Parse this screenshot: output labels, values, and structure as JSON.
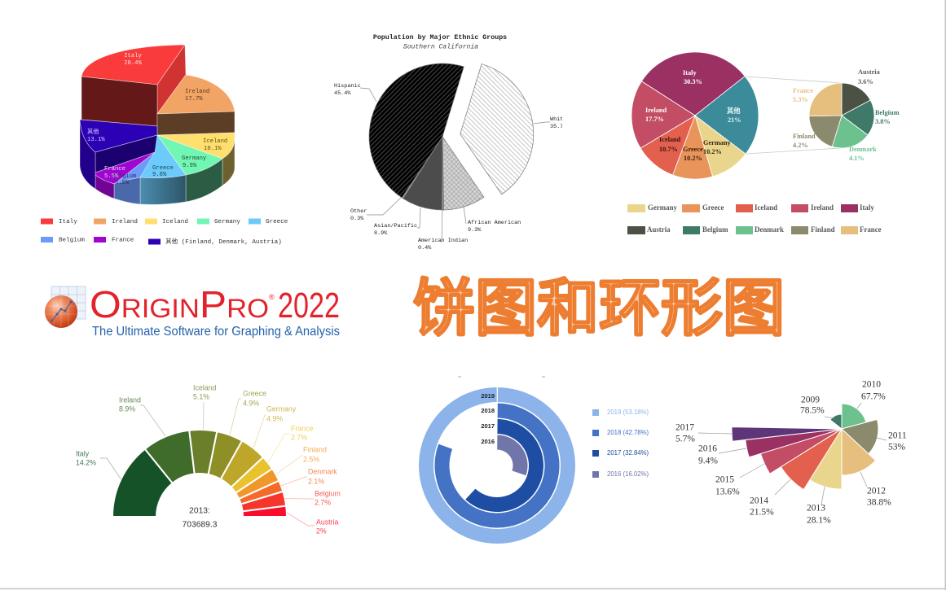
{
  "page": {
    "title": "饼图和环形图",
    "title_fill": "#f9caa7",
    "title_stroke": "#ed7d31",
    "logo": {
      "brand": "OriginPro",
      "registered": "®",
      "version": "2022",
      "tagline": "The Ultimate Software for Graphing & Analysis",
      "brand_color": "#e3232c",
      "tagline_color": "#2361ab"
    }
  },
  "chart_data": [
    {
      "id": "pie-3d-exploded",
      "type": "pie",
      "subtype": "3d-exploded",
      "slices": [
        {
          "name": "Italy",
          "pct": "28.4%",
          "value": 28.4,
          "color": "#f93b3b"
        },
        {
          "name": "Ireland",
          "pct": "17.7%",
          "value": 17.7,
          "color": "#f2a464"
        },
        {
          "name": "Iceland",
          "pct": "10.1%",
          "value": 10.1,
          "color": "#ffe06e"
        },
        {
          "name": "Germany",
          "pct": "9.9%",
          "value": 9.9,
          "color": "#72f6b4"
        },
        {
          "name": "Greece",
          "pct": "9.8%",
          "value": 9.8,
          "color": "#6ccbfa"
        },
        {
          "name": "Belgium",
          "pct": "5.5%",
          "value": 5.5,
          "color": "#6c9afa"
        },
        {
          "name": "France",
          "pct": "5.5%",
          "value": 5.5,
          "color": "#9f06cf"
        },
        {
          "name": "其他",
          "pct": "13.1%",
          "value": 13.1,
          "color": "#2c00b4"
        }
      ],
      "legend": [
        "Italy",
        "Ireland",
        "Iceland",
        "Germany",
        "Greece",
        "Belgium",
        "France",
        "其他 (Finland, Denmark, Austria)"
      ],
      "legend_position": "bottom"
    },
    {
      "id": "pie-ethnic-groups",
      "type": "pie",
      "title": "Population by Major Ethnic Groups",
      "subtitle": "Southern California",
      "slices": [
        {
          "name": "White",
          "pct": "35.7%",
          "value": 35.7,
          "color": "#ffffff",
          "pattern": "diag-light",
          "exploded": true
        },
        {
          "name": "African American",
          "pct": "9.3%",
          "value": 9.3,
          "color": "#d2d2d2",
          "pattern": "crosshatch"
        },
        {
          "name": "American Indian",
          "pct": "0.4%",
          "value": 0.4,
          "color": "#8e8e8e"
        },
        {
          "name": "Asian/Pacific",
          "pct": "8.9%",
          "value": 8.9,
          "color": "#4c4c4c"
        },
        {
          "name": "Other",
          "pct": "0.3%",
          "value": 0.3,
          "color": "#a4a4a4"
        },
        {
          "name": "Hispanic",
          "pct": "45.4%",
          "value": 45.4,
          "color": "#000000",
          "pattern": "diag-dark"
        }
      ]
    },
    {
      "id": "pie-of-pie",
      "type": "pie",
      "subtype": "pie-of-pie",
      "slices": [
        {
          "name": "Italy",
          "pct": "30.3%",
          "value": 30.3,
          "color": "#9b3163",
          "label_color": "#ffffff"
        },
        {
          "name": "其他",
          "pct": "21%",
          "value": 21,
          "color": "#3b8b9b",
          "label_color": "#e6f3f5"
        },
        {
          "name": "Germany",
          "pct": "10.2%",
          "value": 10.2,
          "color": "#e9d68c",
          "label_color": "#3a2410"
        },
        {
          "name": "Greece",
          "pct": "10.2%",
          "value": 10.2,
          "color": "#e8945a",
          "label_color": "#3a1e10"
        },
        {
          "name": "Iceland",
          "pct": "10.7%",
          "value": 10.7,
          "color": "#e2604d",
          "label_color": "#3a1410"
        },
        {
          "name": "Ireland",
          "pct": "17.7%",
          "value": 17.7,
          "color": "#c24d65",
          "label_color": "#ffffff"
        }
      ],
      "secondary": [
        {
          "name": "Austria",
          "pct": "3.6%",
          "value": 3.6,
          "color": "#4b5145",
          "label_color": "#5b5f55"
        },
        {
          "name": "Belgium",
          "pct": "3.8%",
          "value": 3.8,
          "color": "#3e7a67",
          "label_color": "#3e7a67"
        },
        {
          "name": "Denmark",
          "pct": "4.1%",
          "value": 4.1,
          "color": "#6dc18f",
          "label_color": "#6dc18f"
        },
        {
          "name": "Finland",
          "pct": "4.2%",
          "value": 4.2,
          "color": "#8c8a6c",
          "label_color": "#8c8a6c"
        },
        {
          "name": "France",
          "pct": "5.3%",
          "value": 5.3,
          "color": "#e6bf7f",
          "label_color": "#e6bf7f"
        }
      ],
      "legend": [
        "Germany",
        "Greece",
        "Iceland",
        "Ireland",
        "Italy",
        "Austria",
        "Belgium",
        "Denmark",
        "Finland",
        "France"
      ],
      "legend_position": "bottom"
    },
    {
      "id": "half-donut-2013",
      "type": "pie",
      "subtype": "half-donut",
      "center_label": "2013:",
      "center_value": "703689.3",
      "slices": [
        {
          "name": "Italy",
          "pct": "14.2%",
          "value": 14.2,
          "color": "#165228"
        },
        {
          "name": "Ireland",
          "pct": "8.9%",
          "value": 8.9,
          "color": "#3f6b2b"
        },
        {
          "name": "Iceland",
          "pct": "5.1%",
          "value": 5.1,
          "color": "#6b7f2b"
        },
        {
          "name": "Greece",
          "pct": "4.9%",
          "value": 4.9,
          "color": "#8f8f28"
        },
        {
          "name": "Germany",
          "pct": "4.9%",
          "value": 4.9,
          "color": "#bea62b"
        },
        {
          "name": "France",
          "pct": "2.7%",
          "value": 2.7,
          "color": "#e8c32e"
        },
        {
          "name": "Finland",
          "pct": "2.5%",
          "value": 2.5,
          "color": "#f0962b"
        },
        {
          "name": "Denmark",
          "pct": "2.1%",
          "value": 2.1,
          "color": "#f46a2b"
        },
        {
          "name": "Belgium",
          "pct": "2.7%",
          "value": 2.7,
          "color": "#f6352b"
        },
        {
          "name": "Austria",
          "pct": "2%",
          "value": 2,
          "color": "#fa0d2c"
        }
      ]
    },
    {
      "id": "radial-bar",
      "type": "bar",
      "subtype": "radial",
      "categories": [
        "2019",
        "2018",
        "2017",
        "2016"
      ],
      "values": [
        53.18,
        42.78,
        32.84,
        16.02
      ],
      "colors": [
        "#8cb4ea",
        "#4472c4",
        "#1e4ea4",
        "#7076a9"
      ],
      "legend": [
        "2019 (53.18%)",
        "2018 (42.78%)",
        "2017 (32.84%)",
        "2016 (16.02%)"
      ],
      "legend_position": "right"
    },
    {
      "id": "rose-chart",
      "type": "pie",
      "subtype": "rose",
      "slices": [
        {
          "name": "2009",
          "pct": "78.5%",
          "value": 78.5,
          "color": "#3e7a67"
        },
        {
          "name": "2010",
          "pct": "67.7%",
          "value": 67.7,
          "color": "#6dc18f"
        },
        {
          "name": "2011",
          "pct": "53%",
          "value": 53,
          "color": "#8c8a6c"
        },
        {
          "name": "2012",
          "pct": "38.8%",
          "value": 38.8,
          "color": "#e6bf7f"
        },
        {
          "name": "2013",
          "pct": "28.1%",
          "value": 28.1,
          "color": "#e9d68c"
        },
        {
          "name": "2014",
          "pct": "21.5%",
          "value": 21.5,
          "color": "#e2604d"
        },
        {
          "name": "2015",
          "pct": "13.6%",
          "value": 13.6,
          "color": "#c24d65"
        },
        {
          "name": "2016",
          "pct": "9.4%",
          "value": 9.4,
          "color": "#9b3163"
        },
        {
          "name": "2017",
          "pct": "5.7%",
          "value": 5.7,
          "color": "#5f3579"
        }
      ]
    }
  ]
}
